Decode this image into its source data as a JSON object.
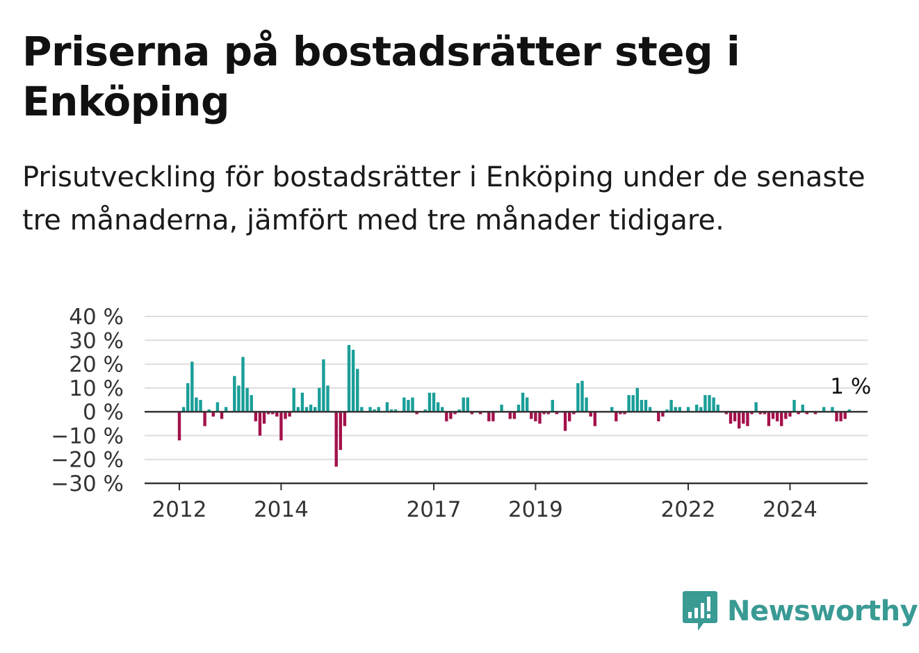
{
  "title": "Priserna på bostadsrätter steg i Enköping",
  "subtitle": "Prisutveckling för bostadsrätter i Enköping under de senaste tre månaderna, jämfört med tre månader tidigare.",
  "brand": {
    "name": "Newsworthy",
    "color": "#3a9a94",
    "icon": "bar-chart-speech-bubble-icon"
  },
  "chart_data": {
    "type": "bar",
    "x_start": "2012-01",
    "frequency": "monthly",
    "ylim": [
      -30,
      40
    ],
    "y_ticks": [
      40,
      30,
      20,
      10,
      0,
      -10,
      -20,
      -30
    ],
    "y_tick_labels": [
      "40 %",
      "30 %",
      "20 %",
      "10 %",
      "0 %",
      "−10 %",
      "−20 %",
      "−30 %"
    ],
    "x_ticks": [
      "2012",
      "2014",
      "2017",
      "2019",
      "2022",
      "2024"
    ],
    "positive_color": "#1a9e98",
    "negative_color": "#a3114b",
    "grid": true,
    "end_label": "1 %",
    "values": [
      -12,
      2,
      12,
      21,
      6,
      5,
      -6,
      1,
      -2,
      4,
      -3,
      2,
      0,
      15,
      11,
      23,
      10,
      7,
      -4,
      -10,
      -5,
      -1,
      -1,
      -2,
      -12,
      -3,
      -2,
      10,
      2,
      8,
      2,
      3,
      2,
      10,
      22,
      11,
      0,
      -23,
      -16,
      -6,
      28,
      26,
      18,
      2,
      0,
      2,
      1,
      2,
      0,
      4,
      1,
      1,
      0,
      6,
      5,
      6,
      -1,
      0,
      1,
      8,
      8,
      4,
      2,
      -4,
      -3,
      -1,
      1,
      6,
      6,
      -1,
      0,
      -1,
      0,
      -4,
      -4,
      0,
      3,
      0,
      -3,
      -3,
      3,
      8,
      6,
      -3,
      -4,
      -5,
      -1,
      -1,
      5,
      -1,
      0,
      -8,
      -4,
      -1,
      12,
      13,
      6,
      -2,
      -6,
      0,
      0,
      0,
      2,
      -4,
      -1,
      -1,
      7,
      7,
      10,
      5,
      5,
      2,
      0,
      -4,
      -2,
      1,
      5,
      2,
      2,
      0,
      2,
      0,
      3,
      2,
      7,
      7,
      6,
      3,
      0,
      -1,
      -5,
      -4,
      -7,
      -5,
      -6,
      -1,
      4,
      -1,
      -1,
      -6,
      -3,
      -4,
      -6,
      -3,
      -2,
      5,
      -1,
      3,
      -1,
      0,
      -1,
      0,
      2,
      0,
      2,
      -4,
      -4,
      -3,
      1
    ]
  }
}
